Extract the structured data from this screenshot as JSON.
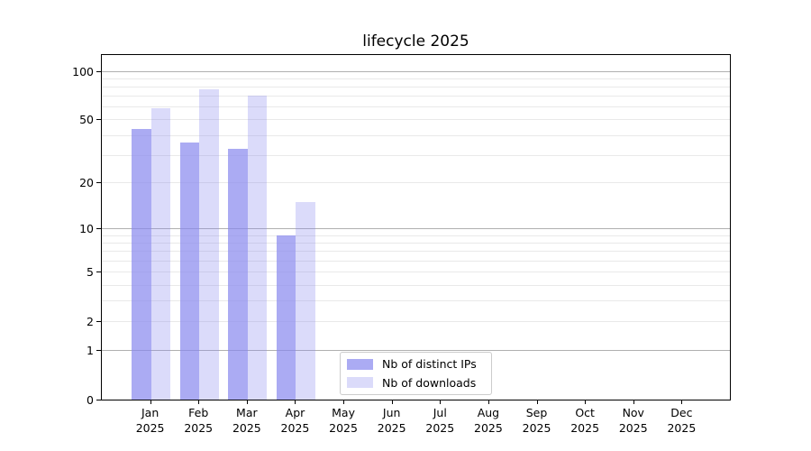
{
  "chart_data": {
    "type": "bar",
    "title": "lifecycle 2025",
    "xlabel": "",
    "ylabel": "",
    "categories": [
      "Jan",
      "Feb",
      "Mar",
      "Apr",
      "May",
      "Jun",
      "Jul",
      "Aug",
      "Sep",
      "Oct",
      "Nov",
      "Dec"
    ],
    "category_year": "2025",
    "series": [
      {
        "name": "Nb of distinct IPs",
        "color": "rgba(136,136,238,0.7)",
        "values": [
          44,
          36,
          33,
          9,
          0,
          0,
          0,
          0,
          0,
          0,
          0,
          0
        ]
      },
      {
        "name": "Nb of downloads",
        "color": "rgba(136,136,238,0.3)",
        "values": [
          59,
          77,
          71,
          15,
          0,
          0,
          0,
          0,
          0,
          0,
          0,
          0
        ]
      }
    ],
    "yscale": "log1p",
    "ylim": [
      0,
      124
    ],
    "yticks": [
      0,
      1,
      2,
      5,
      10,
      20,
      50,
      100
    ],
    "major_gridlines": [
      1,
      10,
      100
    ],
    "minor_gridlines": [
      2,
      3,
      4,
      5,
      6,
      7,
      8,
      9,
      20,
      30,
      40,
      50,
      60,
      70,
      80,
      90
    ],
    "grid": true,
    "legend_position": "lower center"
  },
  "colors": {
    "grid_major": "#b0b0b0",
    "grid_minor": "#e9e9e9",
    "spine": "#000000",
    "text": "#000000",
    "legend_border": "#cccccc",
    "background": "#ffffff"
  }
}
